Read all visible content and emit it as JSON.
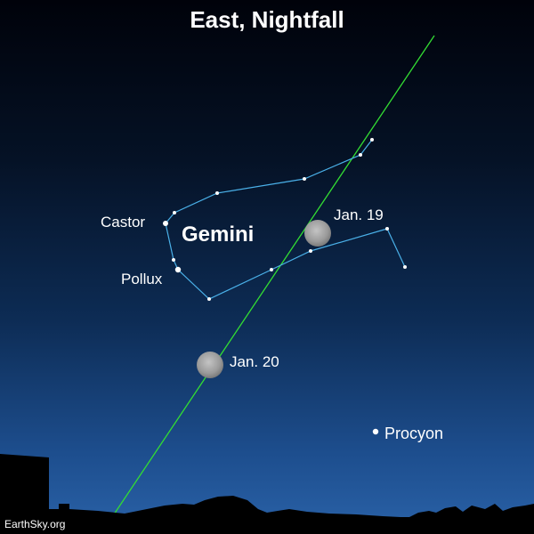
{
  "title": "East, Nightfall",
  "constellation": "Gemini",
  "stars": {
    "castor": "Castor",
    "pollux": "Pollux",
    "procyon": "Procyon"
  },
  "moon": {
    "first": "Jan. 19",
    "second": "Jan. 20"
  },
  "credit": "EarthSky.org",
  "colors": {
    "sky_top": "#00020a",
    "sky_bottom": "#2a62a8",
    "ecliptic": "#33dd33",
    "constellation_lines": "#4ab0e8",
    "moon": "#9a9a9a",
    "text": "#ffffff"
  }
}
